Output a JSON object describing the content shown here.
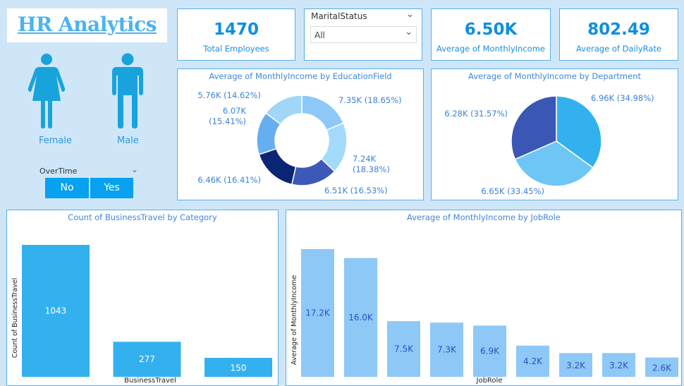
{
  "header": {
    "title": "HR Analytics"
  },
  "gender": {
    "female": "Female",
    "male": "Male"
  },
  "overtime": {
    "label": "OverTime",
    "options": [
      "No",
      "Yes"
    ]
  },
  "kpis": [
    {
      "value": "1470",
      "label": "Total Employees"
    },
    {
      "value": "6.50K",
      "label": "Average of MonthlyIncome"
    },
    {
      "value": "802.49",
      "label": "Average of DailyRate"
    }
  ],
  "marital": {
    "label": "MaritalStatus",
    "value": "All"
  },
  "education": {
    "title": "Average of MonthlyIncome by EducationField",
    "type": "donut",
    "slices": [
      {
        "value": 7.35,
        "label": "7.35K (18.65%)",
        "color": "#8ec8f7"
      },
      {
        "value": 7.24,
        "label": "7.24K (18.38%)",
        "color": "#a4dbfa"
      },
      {
        "value": 6.51,
        "label": "6.51K (16.53%)",
        "color": "#3d59b8"
      },
      {
        "value": 6.46,
        "label": "6.46K (16.41%)",
        "color": "#0b2575"
      },
      {
        "value": 6.07,
        "label": "6.07K (15.41%)",
        "color": "#67aef0"
      },
      {
        "value": 5.76,
        "label": "5.76K (14.62%)",
        "color": "#a0d6f8"
      }
    ]
  },
  "department": {
    "title": "Average of MonthlyIncome by Department",
    "type": "pie",
    "slices": [
      {
        "value": 6.96,
        "label": "6.96K (34.98%)",
        "color": "#33b1ef"
      },
      {
        "value": 6.65,
        "label": "6.65K (33.45%)",
        "color": "#6ec6f5"
      },
      {
        "value": 6.28,
        "label": "6.28K (31.57%)",
        "color": "#3a57b5"
      }
    ]
  },
  "chart_data": [
    {
      "type": "bar",
      "title": "Count of BusinessTravel by Category",
      "xlabel": "BusinessTravel",
      "ylabel": "Count of BusinessTravel",
      "values": [
        1043,
        277,
        150
      ],
      "labels": [
        "1043",
        "277",
        "150"
      ],
      "color": "#33b1ef"
    },
    {
      "type": "bar",
      "title": "Average of MonthlyIncome by JobRole",
      "xlabel": "JobRole",
      "ylabel": "Average of MonthlyIncome",
      "values": [
        17.2,
        16.0,
        7.5,
        7.3,
        6.9,
        4.2,
        3.2,
        3.2,
        2.6
      ],
      "labels": [
        "17.2K",
        "16.0K",
        "7.5K",
        "7.3K",
        "6.9K",
        "4.2K",
        "3.2K",
        "3.2K",
        "2.6K"
      ],
      "color": "#8ec8f7"
    }
  ]
}
